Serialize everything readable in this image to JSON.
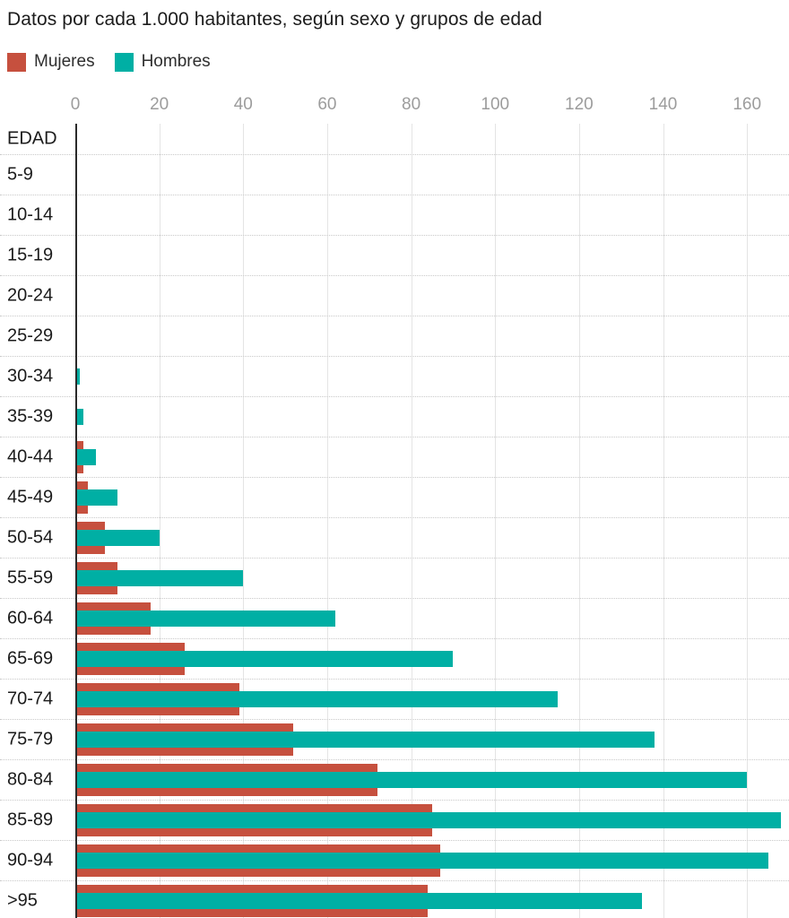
{
  "title": "Datos por cada 1.000 habitantes, según sexo y grupos de edad",
  "legend": [
    {
      "label": "Mujeres",
      "color": "#c6503e"
    },
    {
      "label": "Hombres",
      "color": "#00afa4"
    }
  ],
  "colors": {
    "mujeres": "#c6503e",
    "hombres": "#00afa4",
    "axis_line": "#2a2a2a",
    "gridline": "#e4e4e4",
    "tick_label": "#9c9c9c",
    "row_label": "#1b1b1b",
    "separator": "#c9c9c9"
  },
  "axis": {
    "header_label": "EDAD",
    "ticks": [
      0,
      20,
      40,
      60,
      80,
      100,
      120,
      140,
      160
    ],
    "max": 170
  },
  "chart_data": {
    "type": "bar",
    "orientation": "horizontal",
    "title": "Datos por cada 1.000 habitantes, según sexo y grupos de edad",
    "xlabel": "",
    "ylabel": "EDAD",
    "xlim": [
      0,
      170
    ],
    "x_ticks": [
      0,
      20,
      40,
      60,
      80,
      100,
      120,
      140,
      160
    ],
    "grid": true,
    "legend_position": "top-left",
    "categories": [
      "5-9",
      "10-14",
      "15-19",
      "20-24",
      "25-29",
      "30-34",
      "35-39",
      "40-44",
      "45-49",
      "50-54",
      "55-59",
      "60-64",
      "65-69",
      "70-74",
      "75-79",
      "80-84",
      "85-89",
      "90-94",
      ">95"
    ],
    "series": [
      {
        "name": "Mujeres",
        "color": "#c6503e",
        "values": [
          0,
          0,
          0,
          0,
          0,
          0,
          0,
          2,
          3,
          7,
          10,
          18,
          26,
          39,
          52,
          72,
          85,
          87,
          84
        ]
      },
      {
        "name": "Hombres",
        "color": "#00afa4",
        "values": [
          0,
          0,
          0,
          0,
          0,
          1,
          2,
          5,
          10,
          20,
          40,
          62,
          90,
          115,
          138,
          160,
          168,
          165,
          135
        ]
      }
    ]
  }
}
